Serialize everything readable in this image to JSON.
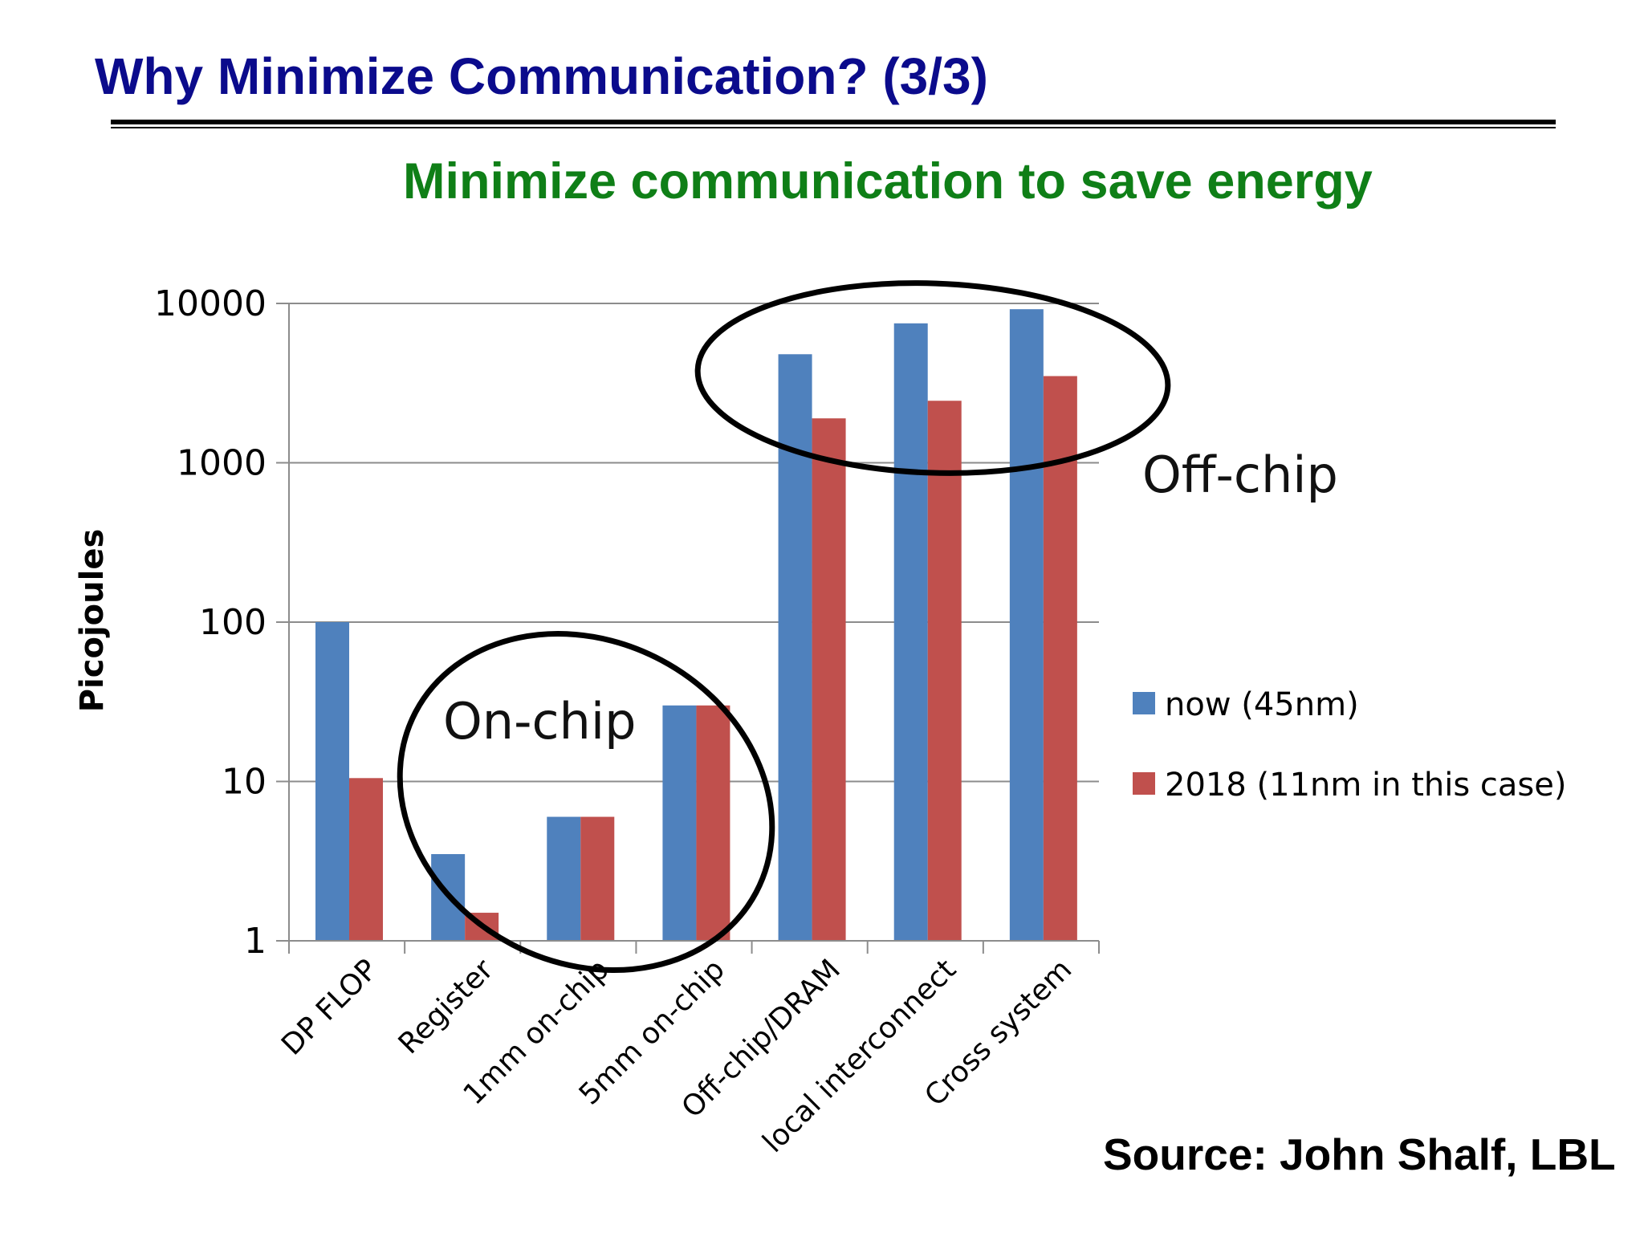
{
  "slide": {
    "title": "Why Minimize Communication? (3/3)",
    "subtitle": "Minimize communication to save energy",
    "source": "Source: John Shalf, LBL"
  },
  "chart_data": {
    "type": "bar",
    "scale": "log",
    "ylabel": "Picojoules",
    "ylim": [
      1,
      10000
    ],
    "yticks": [
      "1",
      "10",
      "100",
      "1000",
      "10000"
    ],
    "categories": [
      "DP FLOP",
      "Register",
      "1mm on-chip",
      "5mm on-chip",
      "Off-chip/DRAM",
      "local interconnect",
      "Cross system"
    ],
    "series": [
      {
        "name": "now (45nm)",
        "color": "#4f81bd",
        "values": [
          100,
          3.5,
          6,
          30,
          4800,
          7500,
          9200
        ]
      },
      {
        "name": "2018 (11nm in this case)",
        "color": "#c0504d",
        "values": [
          10.5,
          1.5,
          6,
          30,
          1900,
          2450,
          3500
        ]
      }
    ],
    "annotations": [
      "On-chip",
      "Off-chip"
    ],
    "grid": true,
    "legend": "right"
  }
}
